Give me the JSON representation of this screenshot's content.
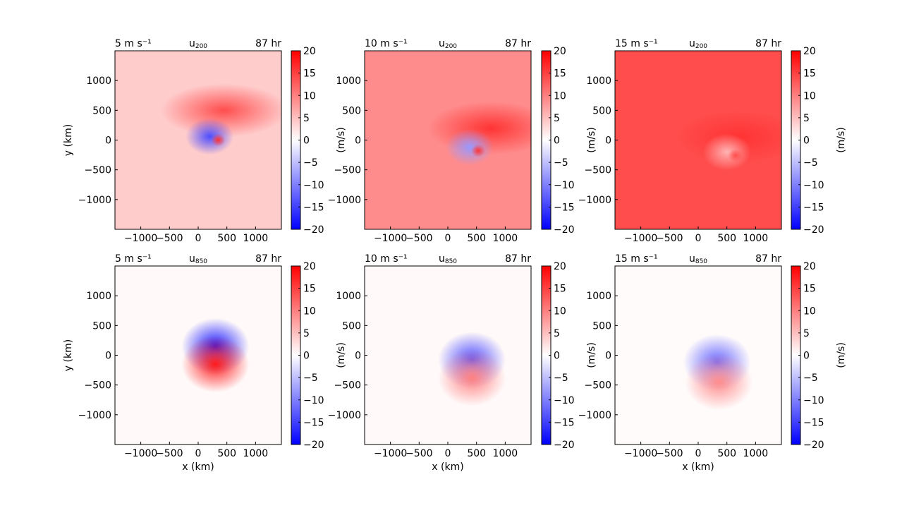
{
  "colorbar": {
    "min": -20,
    "max": 20,
    "ticks": [
      "20",
      "15",
      "10",
      "5",
      "0",
      "−5",
      "−10",
      "−15",
      "−20"
    ],
    "label": "(m/s)",
    "colors": {
      "negative": "#0000ff",
      "zero": "#ffffff",
      "positive": "#ff0000"
    }
  },
  "axes": {
    "xlabel": "x (km)",
    "ylabel": "y (km)",
    "xlim": [
      -1450,
      1450
    ],
    "ylim": [
      -1500,
      1500
    ],
    "xticks": [
      "−1000",
      "−500",
      "0",
      "500",
      "1000"
    ],
    "yticks": [
      "1000",
      "500",
      "0",
      "−500",
      "−1000"
    ]
  },
  "chart_data": [
    {
      "type": "heatmap",
      "panel": "top-left",
      "left_title": "5 m s⁻¹",
      "center_title": "u",
      "center_sub": "200",
      "right_title": "87 hr",
      "background_value": 4,
      "jet_value": 14,
      "jet_center": [
        450,
        500
      ],
      "core_value": -14,
      "core_center": [
        200,
        60
      ],
      "core_max": 16
    },
    {
      "type": "heatmap",
      "panel": "top-center",
      "left_title": "10 m s⁻¹",
      "center_title": "u",
      "center_sub": "200",
      "right_title": "87 hr",
      "background_value": 9,
      "jet_value": 16,
      "jet_center": [
        750,
        200
      ],
      "core_value": -8,
      "core_center": [
        380,
        -120
      ],
      "core_max": 16
    },
    {
      "type": "heatmap",
      "panel": "top-right",
      "left_title": "15 m s⁻¹",
      "center_title": "u",
      "center_sub": "200",
      "right_title": "87 hr",
      "background_value": 14,
      "jet_value": 16,
      "jet_center": [
        700,
        50
      ],
      "core_value": 6,
      "core_center": [
        500,
        -200
      ],
      "core_max": 14
    },
    {
      "type": "heatmap",
      "panel": "bottom-left",
      "left_title": "5 m s⁻¹",
      "center_title": "u",
      "center_sub": "850",
      "right_title": "87 hr",
      "background_value": 0.5,
      "neg_value": -18,
      "neg_center": [
        300,
        150
      ],
      "pos_value": 18,
      "pos_center": [
        300,
        -150
      ]
    },
    {
      "type": "heatmap",
      "panel": "bottom-center",
      "left_title": "10 m s⁻¹",
      "center_title": "u",
      "center_sub": "850",
      "right_title": "87 hr",
      "background_value": 0.5,
      "neg_value": -14,
      "neg_center": [
        420,
        -80
      ],
      "pos_value": 10,
      "pos_center": [
        420,
        -380
      ]
    },
    {
      "type": "heatmap",
      "panel": "bottom-right",
      "left_title": "15 m s⁻¹",
      "center_title": "u",
      "center_sub": "850",
      "right_title": "87 hr",
      "background_value": 0.3,
      "neg_value": -12,
      "neg_center": [
        330,
        -120
      ],
      "pos_value": 9,
      "pos_center": [
        360,
        -450
      ]
    }
  ]
}
